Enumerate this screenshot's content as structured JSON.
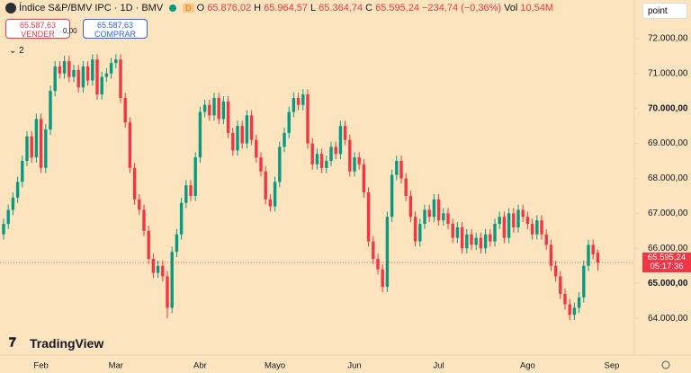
{
  "header": {
    "open_label": "O",
    "open": "65.876,02",
    "high_label": "H",
    "high": "65.964,57",
    "low_label": "L",
    "low": "65.364,74",
    "close_label": "C",
    "close": "65.595,24",
    "change": "−234,74 (−0,36%)",
    "volume_label": "Vol",
    "volume": "10,54M",
    "session_badge": "D"
  },
  "trading_panel": {
    "sell_price": "65.587,63",
    "sell_label": "VENDER",
    "spread": "0,00",
    "buy_price": "65.587,63",
    "buy_label": "COMPRAR",
    "indicators_count": "2"
  },
  "toolbar": {
    "unit": "point"
  },
  "footer": {
    "brand": "TradingView"
  },
  "chart_data": {
    "type": "candlestick",
    "title": "Índice S&P/BMV IPC · 1D · BMV",
    "categories": [
      null,
      null,
      null,
      null,
      null,
      null,
      null,
      null,
      "Feb",
      null,
      null,
      null,
      null,
      null,
      null,
      null,
      null,
      null,
      null,
      null,
      null,
      null,
      null,
      null,
      "Mar",
      null,
      null,
      null,
      null,
      null,
      null,
      null,
      null,
      null,
      null,
      null,
      null,
      null,
      null,
      null,
      null,
      null,
      "Abr",
      null,
      null,
      null,
      null,
      null,
      null,
      null,
      null,
      null,
      null,
      null,
      null,
      null,
      null,
      null,
      "Mayo",
      null,
      null,
      null,
      null,
      null,
      null,
      null,
      null,
      null,
      null,
      null,
      null,
      null,
      null,
      null,
      null,
      "Jun",
      null,
      null,
      null,
      null,
      null,
      null,
      null,
      null,
      null,
      null,
      null,
      null,
      null,
      null,
      null,
      null,
      null,
      "Jul",
      null,
      null,
      null,
      null,
      null,
      null,
      null,
      null,
      null,
      null,
      null,
      null,
      null,
      null,
      null,
      null,
      null,
      null,
      "Ago",
      null,
      null,
      null,
      null,
      null,
      null,
      null,
      null,
      null,
      null,
      null,
      null,
      null,
      null,
      null,
      null,
      null,
      "Sep"
    ],
    "open": [
      66400,
      66700,
      67100,
      67450,
      67900,
      68500,
      69200,
      68600,
      69700,
      68300,
      69400,
      70500,
      71200,
      71000,
      71350,
      70900,
      71100,
      70600,
      71200,
      70800,
      71400,
      70400,
      70900,
      71000,
      71300,
      71400,
      70300,
      69600,
      68300,
      67400,
      67100,
      66500,
      65700,
      65300,
      65500,
      65200,
      64300,
      65900,
      66400,
      67300,
      67800,
      67500,
      68600,
      69900,
      70100,
      69800,
      70300,
      69700,
      70200,
      69300,
      68800,
      69500,
      69000,
      69800,
      69100,
      68600,
      68200,
      67400,
      67200,
      67900,
      68900,
      69300,
      69900,
      70300,
      70100,
      70400,
      69000,
      68400,
      68700,
      68300,
      68500,
      68900,
      68700,
      69500,
      69100,
      68200,
      68600,
      68400,
      67600,
      66200,
      65700,
      65400,
      64900,
      66900,
      68100,
      68500,
      68000,
      67500,
      66900,
      66200,
      66700,
      67100,
      66900,
      67400,
      66800,
      67000,
      66700,
      66300,
      66600,
      66000,
      66400,
      66100,
      66300,
      66000,
      66400,
      66200,
      66700,
      66900,
      66300,
      67000,
      66600,
      67100,
      66900,
      66700,
      66400,
      66800,
      66400,
      66100,
      65500,
      65200,
      64700,
      64400,
      64100,
      64300,
      64600,
      65500,
      66100,
      65876.02,
      null,
      null,
      null
    ],
    "high": [
      66850,
      67250,
      67600,
      68050,
      68650,
      69350,
      69350,
      69850,
      69850,
      69550,
      70650,
      71350,
      71350,
      71500,
      71500,
      71250,
      71250,
      71350,
      71350,
      71550,
      71550,
      71050,
      71150,
      71450,
      71550,
      71550,
      70450,
      69750,
      68450,
      67550,
      67250,
      66650,
      65850,
      65650,
      65650,
      65350,
      66050,
      66550,
      67450,
      67950,
      67950,
      68750,
      70050,
      70250,
      70250,
      70450,
      70450,
      70350,
      70350,
      69450,
      69650,
      69650,
      69950,
      69950,
      69250,
      68750,
      68350,
      67550,
      68050,
      69050,
      69450,
      70050,
      70450,
      70450,
      70550,
      70550,
      69150,
      68850,
      68850,
      68650,
      69050,
      69050,
      69650,
      69650,
      69250,
      68750,
      68750,
      68550,
      67750,
      66350,
      65850,
      65550,
      67050,
      68250,
      68650,
      68650,
      68150,
      67650,
      67050,
      66850,
      67250,
      67250,
      67550,
      67550,
      67150,
      67150,
      66850,
      66750,
      66750,
      66550,
      66550,
      66450,
      66450,
      66550,
      66550,
      66850,
      67050,
      67050,
      67150,
      67150,
      67250,
      67250,
      67050,
      66850,
      66950,
      66950,
      66550,
      66250,
      65650,
      65350,
      64850,
      64550,
      64450,
      64750,
      65650,
      66250,
      66250,
      65964.57,
      null,
      null,
      null
    ],
    "low": [
      66250,
      66550,
      66950,
      67300,
      67750,
      68350,
      68450,
      68450,
      68150,
      68150,
      69250,
      70350,
      70850,
      70850,
      70750,
      70750,
      70450,
      70450,
      70650,
      70650,
      70250,
      70250,
      70750,
      70850,
      71150,
      70150,
      69450,
      68150,
      67250,
      66950,
      66350,
      65550,
      65150,
      65150,
      65050,
      64000,
      64150,
      65750,
      66250,
      67150,
      67350,
      67350,
      68450,
      69750,
      69650,
      69650,
      69550,
      69550,
      69150,
      68650,
      68650,
      68850,
      68850,
      68950,
      68450,
      68050,
      67250,
      67050,
      67050,
      67750,
      68750,
      69150,
      69750,
      69950,
      69950,
      68850,
      68250,
      68250,
      68150,
      68150,
      68350,
      68550,
      68550,
      68950,
      68050,
      68050,
      68250,
      67450,
      66050,
      65550,
      65250,
      64750,
      64750,
      66750,
      67950,
      67850,
      67350,
      66750,
      66050,
      66050,
      66550,
      66750,
      66750,
      66650,
      66650,
      66550,
      66150,
      66150,
      65850,
      65850,
      65950,
      65950,
      65850,
      65850,
      66050,
      66050,
      66550,
      66150,
      66150,
      66450,
      66450,
      66750,
      66550,
      66250,
      66250,
      66250,
      65950,
      65350,
      65050,
      64550,
      64250,
      63950,
      63950,
      64150,
      64450,
      65350,
      65680,
      65364.74,
      null,
      null,
      null
    ],
    "close": [
      66700,
      67100,
      67450,
      67900,
      68500,
      69200,
      68600,
      69700,
      68300,
      69400,
      70500,
      71200,
      71000,
      71350,
      70900,
      71100,
      70600,
      71200,
      70800,
      71400,
      70400,
      70900,
      71000,
      71300,
      71400,
      70300,
      69600,
      68300,
      67400,
      67100,
      66500,
      65700,
      65300,
      65500,
      65200,
      64300,
      65900,
      66400,
      67300,
      67800,
      67500,
      68600,
      69900,
      70100,
      69800,
      70300,
      69700,
      70200,
      69300,
      68800,
      69500,
      69000,
      69800,
      69100,
      68600,
      68200,
      67400,
      67200,
      67900,
      68900,
      69300,
      69900,
      70300,
      70100,
      70400,
      69000,
      68400,
      68700,
      68300,
      68500,
      68900,
      68700,
      69500,
      69100,
      68200,
      68600,
      68400,
      67600,
      66200,
      65700,
      65400,
      64900,
      66900,
      68100,
      68500,
      68000,
      67500,
      66900,
      66200,
      66700,
      67100,
      66900,
      67400,
      66800,
      67000,
      66700,
      66300,
      66600,
      66000,
      66400,
      66100,
      66300,
      66000,
      66400,
      66200,
      66700,
      66900,
      66300,
      67000,
      66600,
      67100,
      66900,
      66700,
      66400,
      66800,
      66400,
      66100,
      65500,
      65200,
      64700,
      64400,
      64100,
      64300,
      64600,
      65500,
      66100,
      65830,
      65595.24,
      null,
      null,
      null
    ],
    "up_color": "#089981",
    "down_color": "#f23645",
    "ylim": [
      62950,
      73100
    ],
    "yticks": [
      {
        "value": 64000,
        "label": "64.000,00"
      },
      {
        "value": 65000,
        "label": "65.000,00"
      },
      {
        "value": 66000,
        "label": "66.000,00"
      },
      {
        "value": 67000,
        "label": "67.000,00"
      },
      {
        "value": 68000,
        "label": "68.000,00"
      },
      {
        "value": 69000,
        "label": "69.000,00"
      },
      {
        "value": 70000,
        "label": "70.000,00"
      },
      {
        "value": 71000,
        "label": "71.000,00"
      },
      {
        "value": 72000,
        "label": "72.000,00"
      }
    ],
    "grid": false,
    "last_price_label": "65.595,24",
    "countdown": "05:17:36"
  }
}
